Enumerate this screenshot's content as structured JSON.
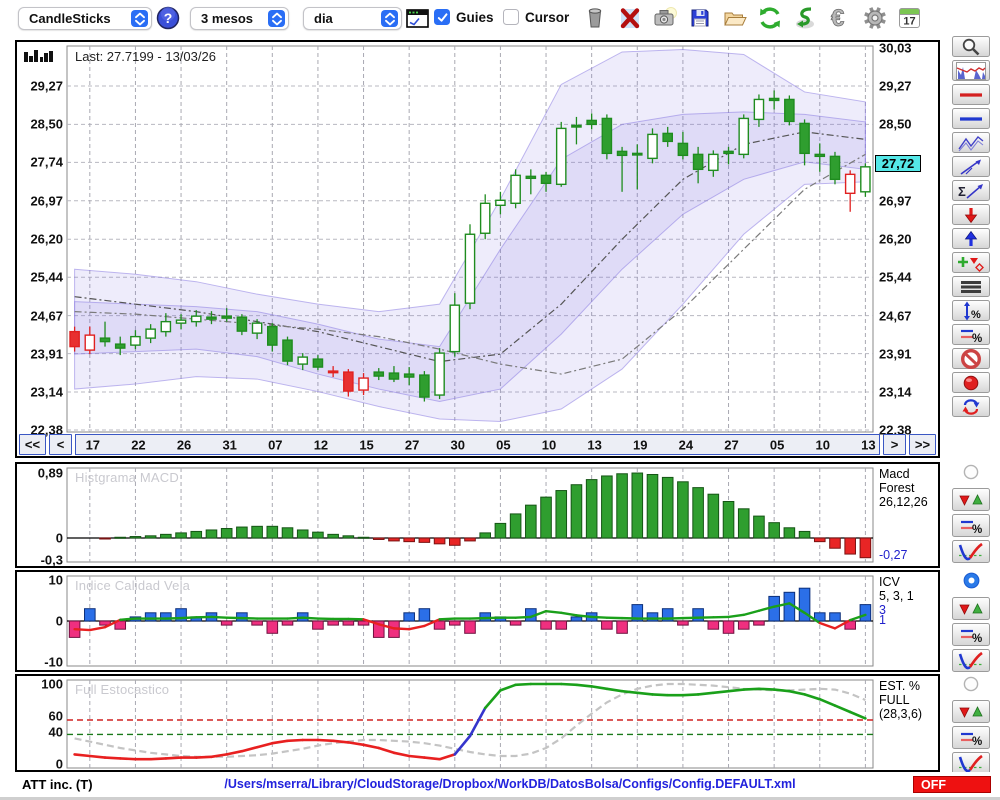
{
  "toolbar": {
    "chart_type": "CandleSticks",
    "period": "3 mesos",
    "timeframe": "dia",
    "guies_label": "Guies",
    "guies_checked": true,
    "cursor_label": "Cursor",
    "cursor_checked": false,
    "calendar_day": "17",
    "action_icons": [
      "trash-icon",
      "delete-x-icon",
      "camera-icon",
      "save-floppy-icon",
      "open-folder-icon",
      "refresh-icon",
      "undo-icon",
      "euro-icon",
      "settings-gear-icon",
      "calendar-icon"
    ]
  },
  "sidebar": {
    "main_tools": [
      "zoom-magnifier-icon",
      "indicator-chart-icon",
      "red-hline-icon",
      "blue-hline-icon",
      "zigzag-channel-icon",
      "trend-line-icon",
      "sigma-trend-icon",
      "arrow-down-red-icon",
      "arrow-up-blue-icon",
      "add-signal-icon",
      "three-lines-icon",
      "range-percent-icon",
      "levels-percent-icon",
      "disable-icon",
      "record-icon",
      "swap-arrows-icon"
    ],
    "panel_groups": [
      {
        "panel": "macd",
        "radio_on": false
      },
      {
        "panel": "icv",
        "radio_on": true
      },
      {
        "panel": "est",
        "radio_on": false
      }
    ],
    "panel_tool_icons": [
      "arrows-up-down-icon",
      "levels-percent-icon",
      "v-curve-icon"
    ]
  },
  "main_chart": {
    "last_label": "Last: 27.7199 - 13/03/26",
    "highlight_value": "27,72",
    "y_labels_left": [
      "29,27",
      "28,50",
      "27,74",
      "26,97",
      "26,20",
      "25,44",
      "24,67",
      "23,91",
      "23,14",
      "22,38"
    ],
    "y_labels_right": [
      "30,03",
      "29,27",
      "28,50",
      "26,97",
      "26,20",
      "25,44",
      "24,67",
      "23,91",
      "23,14",
      "22,38"
    ],
    "nav": {
      "first": "<<",
      "prev": "<",
      "next": ">",
      "last": ">>",
      "labels": [
        "17",
        "22",
        "26",
        "31",
        "07",
        "12",
        "15",
        "27",
        "30",
        "05",
        "10",
        "13",
        "19",
        "24",
        "27",
        "05",
        "10",
        "13"
      ]
    }
  },
  "panels": {
    "macd": {
      "title": "Histgrama MACD",
      "y_labels": [
        "0,89",
        "0",
        "-0,3"
      ],
      "right_lines": [
        "Macd",
        "Forest",
        "26,12,26"
      ],
      "value_label": "-0,27"
    },
    "icv": {
      "title": "Indice Calidad Vela",
      "y_labels": [
        "10",
        "0",
        "-10"
      ],
      "right_lines": [
        "ICV",
        "5, 3, 1"
      ],
      "blue_lines": [
        "3",
        "1"
      ]
    },
    "est": {
      "title": "Full Estocastico",
      "y_labels": [
        "100",
        "60",
        "40",
        "0"
      ],
      "right_lines": [
        "EST. %",
        "FULL",
        "(28,3,6)"
      ]
    }
  },
  "status_bar": {
    "ticker": "ATT inc. (T)",
    "config_path": "/Users/mserra/Library/CloudStorage/Dropbox/WorkDB/DatosBolsa/Configs/Config.DEFAULT.xml",
    "off_label": "OFF"
  },
  "colors": {
    "accent_blue": "#2a6ef5",
    "candle_green": "#1f8c1f",
    "candle_red": "#e02020",
    "band_purple": "#7c6ce0",
    "macd_green": "#2f9e2f",
    "macd_red": "#e82525",
    "icv_blue": "#2b6fe8",
    "icv_pink": "#ef2f7f",
    "line_green": "#1aa01a",
    "line_red": "#e82020",
    "line_blue": "#3535cc",
    "gray_dashed": "#c4c4c4",
    "highlight_cyan": "#55e8e8",
    "off_red": "#ee1111",
    "path_blue": "#2222dd"
  },
  "chart_data": [
    {
      "id": "main",
      "type": "candlestick",
      "title": "Last: 27.7199 - 13/03/26",
      "last_price": 27.7199,
      "last_date": "13/03/26",
      "highlight_price": 27.72,
      "y_ticks": [
        29.27,
        28.5,
        27.74,
        26.97,
        26.2,
        25.44,
        24.67,
        23.91,
        23.14,
        22.38
      ],
      "y_range": [
        22.38,
        30.03
      ],
      "x_labels": [
        "17",
        "22",
        "26",
        "31",
        "07",
        "12",
        "15",
        "27",
        "30",
        "05",
        "10",
        "13",
        "19",
        "24",
        "27",
        "05",
        "10",
        "13"
      ],
      "candles": [
        [
          24.35,
          24.45,
          23.95,
          24.05,
          "r",
          "f"
        ],
        [
          23.98,
          24.45,
          23.9,
          24.28,
          "r",
          "h"
        ],
        [
          24.22,
          24.55,
          24.05,
          24.15,
          "g",
          "f"
        ],
        [
          24.1,
          24.25,
          23.88,
          24.02,
          "g",
          "f"
        ],
        [
          24.08,
          24.38,
          24.0,
          24.25,
          "g",
          "h"
        ],
        [
          24.22,
          24.5,
          24.12,
          24.4,
          "g",
          "h"
        ],
        [
          24.35,
          24.72,
          24.25,
          24.55,
          "g",
          "h"
        ],
        [
          24.52,
          24.7,
          24.4,
          24.58,
          "g",
          "h"
        ],
        [
          24.55,
          24.78,
          24.45,
          24.66,
          "g",
          "h"
        ],
        [
          24.64,
          24.76,
          24.5,
          24.6,
          "g",
          "f"
        ],
        [
          24.66,
          24.82,
          24.55,
          24.62,
          "g",
          "f"
        ],
        [
          24.64,
          24.7,
          24.28,
          24.36,
          "g",
          "f"
        ],
        [
          24.32,
          24.6,
          24.2,
          24.52,
          "g",
          "h"
        ],
        [
          24.45,
          24.52,
          23.95,
          24.08,
          "g",
          "f"
        ],
        [
          24.18,
          24.25,
          23.68,
          23.76,
          "g",
          "f"
        ],
        [
          23.7,
          23.92,
          23.58,
          23.84,
          "g",
          "h"
        ],
        [
          23.8,
          23.88,
          23.58,
          23.64,
          "g",
          "f"
        ],
        [
          23.56,
          23.66,
          23.44,
          23.54,
          "r",
          "f"
        ],
        [
          23.54,
          23.6,
          23.05,
          23.16,
          "r",
          "f"
        ],
        [
          23.18,
          23.52,
          23.08,
          23.42,
          "r",
          "h"
        ],
        [
          23.46,
          23.62,
          23.38,
          23.54,
          "g",
          "f"
        ],
        [
          23.52,
          23.66,
          23.34,
          23.4,
          "g",
          "f"
        ],
        [
          23.44,
          23.64,
          23.28,
          23.5,
          "g",
          "f"
        ],
        [
          23.48,
          23.56,
          22.95,
          23.04,
          "g",
          "f"
        ],
        [
          23.08,
          24.02,
          23.0,
          23.92,
          "g",
          "h"
        ],
        [
          23.95,
          25.12,
          23.85,
          24.88,
          "g",
          "h"
        ],
        [
          24.92,
          26.5,
          24.8,
          26.3,
          "g",
          "h"
        ],
        [
          26.32,
          27.1,
          26.2,
          26.92,
          "g",
          "h"
        ],
        [
          26.88,
          27.15,
          26.7,
          26.98,
          "g",
          "h"
        ],
        [
          26.92,
          27.6,
          26.82,
          27.48,
          "g",
          "h"
        ],
        [
          27.42,
          27.6,
          27.1,
          27.46,
          "g",
          "f"
        ],
        [
          27.48,
          27.55,
          27.15,
          27.32,
          "g",
          "f"
        ],
        [
          27.3,
          28.55,
          27.25,
          28.42,
          "g",
          "h"
        ],
        [
          28.45,
          28.65,
          28.1,
          28.48,
          "g",
          "f"
        ],
        [
          28.5,
          28.72,
          28.4,
          28.58,
          "g",
          "f"
        ],
        [
          28.62,
          28.7,
          27.8,
          27.92,
          "g",
          "f"
        ],
        [
          27.88,
          28.05,
          27.15,
          27.96,
          "g",
          "f"
        ],
        [
          27.92,
          28.1,
          27.2,
          27.9,
          "g",
          "f"
        ],
        [
          27.82,
          28.42,
          27.72,
          28.3,
          "g",
          "h"
        ],
        [
          28.32,
          28.45,
          28.05,
          28.16,
          "g",
          "f"
        ],
        [
          28.12,
          28.35,
          27.8,
          27.88,
          "g",
          "f"
        ],
        [
          27.9,
          28.05,
          27.32,
          27.6,
          "g",
          "f"
        ],
        [
          27.58,
          27.98,
          27.45,
          27.9,
          "g",
          "h"
        ],
        [
          27.92,
          28.05,
          27.7,
          27.96,
          "g",
          "f"
        ],
        [
          27.9,
          28.7,
          27.82,
          28.62,
          "g",
          "h"
        ],
        [
          28.6,
          29.1,
          28.45,
          29.0,
          "g",
          "h"
        ],
        [
          28.98,
          29.18,
          28.8,
          29.02,
          "g",
          "f"
        ],
        [
          29.0,
          29.08,
          28.48,
          28.56,
          "g",
          "f"
        ],
        [
          28.52,
          28.6,
          27.68,
          27.92,
          "g",
          "f"
        ],
        [
          27.9,
          28.12,
          27.55,
          27.86,
          "g",
          "f"
        ],
        [
          27.86,
          27.95,
          27.3,
          27.4,
          "g",
          "f"
        ],
        [
          27.5,
          27.58,
          26.75,
          27.12,
          "r",
          "h"
        ],
        [
          27.15,
          27.72,
          27.05,
          27.65,
          "g",
          "h"
        ]
      ],
      "band_outer_upper": [
        25.6,
        25.5,
        25.35,
        25.1,
        24.9,
        24.75,
        24.9,
        27.0,
        29.3,
        29.95,
        30.0,
        29.9,
        29.15,
        28.95
      ],
      "band_outer_lower": [
        23.2,
        23.3,
        23.45,
        23.4,
        23.15,
        22.85,
        22.6,
        22.55,
        22.8,
        23.6,
        24.9,
        26.3,
        27.3,
        27.35
      ],
      "band_inner_upper": [
        24.95,
        24.9,
        24.85,
        24.75,
        24.5,
        24.2,
        24.05,
        26.0,
        27.8,
        28.5,
        28.7,
        28.75,
        28.7,
        28.55
      ],
      "band_inner_lower": [
        23.9,
        23.95,
        24.0,
        23.85,
        23.5,
        23.2,
        22.95,
        23.2,
        24.3,
        25.6,
        26.7,
        27.4,
        27.75,
        27.6
      ],
      "sma_fast": [
        25.05,
        24.9,
        24.75,
        24.55,
        24.35,
        24.05,
        23.75,
        23.9,
        24.9,
        26.2,
        27.4,
        28.1,
        28.35,
        28.2
      ],
      "sma_slow": [
        24.75,
        24.7,
        24.6,
        24.5,
        24.4,
        24.25,
        24.0,
        23.7,
        23.5,
        23.8,
        24.8,
        26.0,
        27.2,
        27.9
      ]
    },
    {
      "id": "macd",
      "type": "bar",
      "title": "Histgrama MACD",
      "y_range": [
        -0.3,
        0.94
      ],
      "y_ticks": [
        0.89,
        0,
        -0.3
      ],
      "params": "26,12,26",
      "last_value": -0.27,
      "values": [
        0.0,
        0.0,
        -0.01,
        0.01,
        0.02,
        0.03,
        0.05,
        0.07,
        0.09,
        0.11,
        0.13,
        0.15,
        0.16,
        0.16,
        0.14,
        0.11,
        0.08,
        0.05,
        0.03,
        0.01,
        -0.02,
        -0.04,
        -0.05,
        -0.06,
        -0.08,
        -0.1,
        -0.04,
        0.07,
        0.2,
        0.33,
        0.45,
        0.56,
        0.65,
        0.73,
        0.8,
        0.85,
        0.88,
        0.89,
        0.87,
        0.83,
        0.77,
        0.69,
        0.6,
        0.5,
        0.4,
        0.3,
        0.21,
        0.14,
        0.09,
        -0.05,
        -0.14,
        -0.22,
        -0.27
      ]
    },
    {
      "id": "icv",
      "type": "bar+line",
      "title": "Indice Calidad Vela",
      "y_range": [
        -11,
        11
      ],
      "y_ticks": [
        10,
        0,
        -10
      ],
      "params": "5, 3, 1",
      "bars": [
        -4,
        3,
        -1,
        -2,
        1,
        2,
        2,
        3,
        1,
        2,
        -1,
        2,
        -1,
        -3,
        -1,
        2,
        -2,
        -1,
        -1,
        -1,
        -4,
        -4,
        2,
        3,
        -2,
        -1,
        -3,
        2,
        1,
        -1,
        3,
        -2,
        -2,
        1,
        2,
        -2,
        -3,
        4,
        2,
        3,
        -1,
        3,
        -2,
        -3,
        -2,
        -1,
        6,
        7,
        8,
        2,
        2,
        -2,
        4
      ],
      "line": [
        -2,
        -2.2,
        -1.5,
        0.3,
        0.6,
        0.6,
        0.6,
        0.7,
        0.9,
        1.0,
        0.8,
        0.7,
        0.6,
        0.6,
        0.6,
        0.8,
        0.6,
        0.5,
        0.5,
        0.4,
        -0.8,
        -1.8,
        -2.0,
        -1.2,
        0.4,
        0.6,
        0.6,
        0.7,
        0.8,
        0.8,
        1.0,
        2.4,
        2.0,
        1.4,
        1.0,
        0.8,
        0.7,
        0.6,
        0.6,
        0.6,
        0.7,
        0.8,
        0.9,
        1.0,
        1.5,
        2.5,
        3.5,
        4.3,
        2.0,
        -0.5,
        -1.8,
        0.2,
        1.5
      ]
    },
    {
      "id": "est",
      "type": "line",
      "title": "Full Estocastico",
      "y_range": [
        0,
        100
      ],
      "y_ticks": [
        100,
        60,
        40,
        0
      ],
      "thresholds": {
        "red": 55,
        "green": 37
      },
      "params": "(28,3,6)",
      "main": [
        12,
        10,
        8,
        7,
        6,
        6,
        7,
        8,
        8,
        9,
        12,
        16,
        21,
        26,
        29,
        30,
        30,
        29,
        27,
        24,
        20,
        14,
        10,
        8,
        6,
        12,
        35,
        70,
        92,
        99,
        100,
        100,
        100,
        99,
        97,
        94,
        91,
        89,
        87,
        86,
        86,
        87,
        89,
        91,
        93,
        94,
        93,
        91,
        87,
        81,
        73,
        65,
        57
      ],
      "signal": [
        32,
        28,
        24,
        20,
        17,
        14,
        12,
        10,
        9,
        9,
        9,
        10,
        11,
        13,
        16,
        19,
        23,
        26,
        28,
        30,
        30,
        29,
        28,
        26,
        23,
        19,
        15,
        12,
        10,
        10,
        13,
        20,
        32,
        48,
        63,
        77,
        87,
        94,
        98,
        100,
        100,
        99,
        98,
        96,
        94,
        93,
        92,
        92,
        93,
        94,
        93,
        88,
        80
      ],
      "color_stops": [
        {
          "until": 25,
          "color": "#e82020"
        },
        {
          "until": 27,
          "color": "#3535cc"
        },
        {
          "until": 53,
          "color": "#1aa01a"
        }
      ]
    }
  ]
}
